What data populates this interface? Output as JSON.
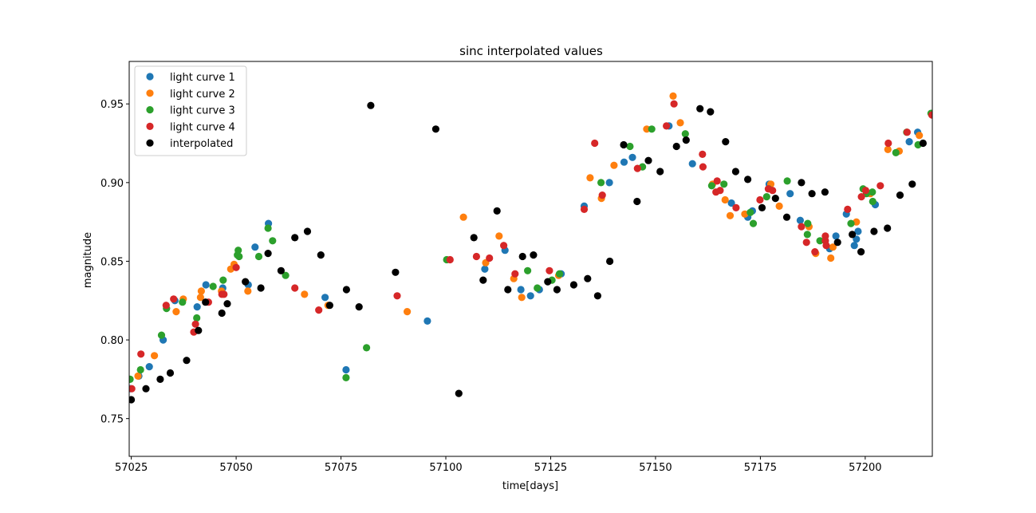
{
  "chart_data": {
    "type": "scatter",
    "title": "sinc interpolated values",
    "xlabel": "time[days]",
    "ylabel": "magnitude",
    "xlim": [
      57024.5,
      57216
    ],
    "ylim": [
      0.726,
      0.977
    ],
    "xticks": [
      57025,
      57050,
      57075,
      57100,
      57125,
      57150,
      57175,
      57200
    ],
    "yticks": [
      0.75,
      0.8,
      0.85,
      0.9,
      0.95
    ],
    "legend_position": "top-left",
    "grid": false,
    "series": [
      {
        "name": "light curve 1",
        "color": "#1f77b4",
        "points": [
          [
            57024.8,
            0.769
          ],
          [
            57026.8,
            0.777
          ],
          [
            57029.3,
            0.783
          ],
          [
            57032.6,
            0.8
          ],
          [
            57035.4,
            0.825
          ],
          [
            57040.7,
            0.821
          ],
          [
            57042.8,
            0.835
          ],
          [
            57046.8,
            0.833
          ],
          [
            57052.9,
            0.835
          ],
          [
            57054.5,
            0.859
          ],
          [
            57057.7,
            0.874
          ],
          [
            57071.2,
            0.827
          ],
          [
            57076.2,
            0.781
          ],
          [
            57095.6,
            0.812
          ],
          [
            57109.3,
            0.845
          ],
          [
            57114.1,
            0.857
          ],
          [
            57117.9,
            0.832
          ],
          [
            57120.2,
            0.828
          ],
          [
            57122.3,
            0.832
          ],
          [
            57127.5,
            0.842
          ],
          [
            57133.0,
            0.885
          ],
          [
            57139.0,
            0.9
          ],
          [
            57142.5,
            0.913
          ],
          [
            57144.5,
            0.916
          ],
          [
            57153.2,
            0.936
          ],
          [
            57158.8,
            0.912
          ],
          [
            57168.1,
            0.887
          ],
          [
            57172.0,
            0.878
          ],
          [
            57173.1,
            0.882
          ],
          [
            57177.1,
            0.899
          ],
          [
            57182.1,
            0.893
          ],
          [
            57184.5,
            0.876
          ],
          [
            57191.5,
            0.858
          ],
          [
            57193.0,
            0.866
          ],
          [
            57195.5,
            0.88
          ],
          [
            57197.4,
            0.86
          ],
          [
            57197.9,
            0.864
          ],
          [
            57198.3,
            0.869
          ],
          [
            57202.4,
            0.886
          ],
          [
            57210.5,
            0.926
          ],
          [
            57212.5,
            0.932
          ]
        ]
      },
      {
        "name": "light curve 2",
        "color": "#ff7f0e",
        "points": [
          [
            57026.6,
            0.777
          ],
          [
            57030.5,
            0.79
          ],
          [
            57035.7,
            0.818
          ],
          [
            57037.4,
            0.826
          ],
          [
            57041.5,
            0.827
          ],
          [
            57041.7,
            0.831
          ],
          [
            57046.5,
            0.831
          ],
          [
            57048.7,
            0.845
          ],
          [
            57049.5,
            0.848
          ],
          [
            57052.8,
            0.831
          ],
          [
            57066.3,
            0.829
          ],
          [
            57071.9,
            0.822
          ],
          [
            57090.8,
            0.818
          ],
          [
            57104.2,
            0.878
          ],
          [
            57109.5,
            0.849
          ],
          [
            57112.7,
            0.866
          ],
          [
            57116.2,
            0.839
          ],
          [
            57118.1,
            0.827
          ],
          [
            57126.9,
            0.841
          ],
          [
            57134.4,
            0.903
          ],
          [
            57137.1,
            0.89
          ],
          [
            57140.1,
            0.911
          ],
          [
            57147.9,
            0.934
          ],
          [
            57154.2,
            0.955
          ],
          [
            57155.9,
            0.938
          ],
          [
            57163.6,
            0.899
          ],
          [
            57166.6,
            0.889
          ],
          [
            57167.8,
            0.879
          ],
          [
            57171.3,
            0.88
          ],
          [
            57177.5,
            0.899
          ],
          [
            57179.5,
            0.885
          ],
          [
            57186.6,
            0.872
          ],
          [
            57188.2,
            0.855
          ],
          [
            57191.8,
            0.852
          ],
          [
            57192.3,
            0.859
          ],
          [
            57197.9,
            0.875
          ],
          [
            57201.2,
            0.893
          ],
          [
            57205.4,
            0.921
          ],
          [
            57208.1,
            0.92
          ],
          [
            57212.9,
            0.93
          ]
        ]
      },
      {
        "name": "light curve 3",
        "color": "#2ca02c",
        "points": [
          [
            57024.7,
            0.775
          ],
          [
            57027.2,
            0.781
          ],
          [
            57032.2,
            0.803
          ],
          [
            57033.4,
            0.82
          ],
          [
            57037.2,
            0.824
          ],
          [
            57040.6,
            0.814
          ],
          [
            57044.5,
            0.834
          ],
          [
            57046.9,
            0.838
          ],
          [
            57050.3,
            0.854
          ],
          [
            57050.5,
            0.857
          ],
          [
            57050.7,
            0.853
          ],
          [
            57055.4,
            0.853
          ],
          [
            57057.6,
            0.871
          ],
          [
            57058.7,
            0.863
          ],
          [
            57061.8,
            0.841
          ],
          [
            57076.2,
            0.776
          ],
          [
            57081.1,
            0.795
          ],
          [
            57100.2,
            0.851
          ],
          [
            57119.5,
            0.844
          ],
          [
            57121.8,
            0.833
          ],
          [
            57125.3,
            0.838
          ],
          [
            57127.1,
            0.842
          ],
          [
            57137.0,
            0.9
          ],
          [
            57143.9,
            0.923
          ],
          [
            57146.9,
            0.91
          ],
          [
            57149.1,
            0.934
          ],
          [
            57157.1,
            0.931
          ],
          [
            57163.4,
            0.898
          ],
          [
            57166.3,
            0.899
          ],
          [
            57172.6,
            0.881
          ],
          [
            57173.3,
            0.874
          ],
          [
            57176.5,
            0.891
          ],
          [
            57177.0,
            0.896
          ],
          [
            57181.4,
            0.901
          ],
          [
            57186.2,
            0.867
          ],
          [
            57186.3,
            0.874
          ],
          [
            57189.2,
            0.863
          ],
          [
            57196.6,
            0.874
          ],
          [
            57199.5,
            0.896
          ],
          [
            57200.3,
            0.893
          ],
          [
            57201.7,
            0.894
          ],
          [
            57201.8,
            0.888
          ],
          [
            57207.3,
            0.919
          ],
          [
            57209.9,
            0.932
          ],
          [
            57212.6,
            0.924
          ],
          [
            57215.7,
            0.944
          ]
        ]
      },
      {
        "name": "light curve 4",
        "color": "#d62728",
        "points": [
          [
            57025.1,
            0.769
          ],
          [
            57027.3,
            0.791
          ],
          [
            57033.3,
            0.822
          ],
          [
            57035.1,
            0.826
          ],
          [
            57039.9,
            0.805
          ],
          [
            57040.3,
            0.81
          ],
          [
            57043.4,
            0.824
          ],
          [
            57046.6,
            0.829
          ],
          [
            57047.1,
            0.829
          ],
          [
            57050.0,
            0.846
          ],
          [
            57064.0,
            0.833
          ],
          [
            57069.7,
            0.819
          ],
          [
            57088.4,
            0.828
          ],
          [
            57101.0,
            0.851
          ],
          [
            57107.3,
            0.853
          ],
          [
            57110.4,
            0.852
          ],
          [
            57113.8,
            0.86
          ],
          [
            57116.5,
            0.842
          ],
          [
            57124.7,
            0.844
          ],
          [
            57133.0,
            0.883
          ],
          [
            57135.5,
            0.925
          ],
          [
            57137.3,
            0.892
          ],
          [
            57145.7,
            0.909
          ],
          [
            57152.6,
            0.936
          ],
          [
            57154.4,
            0.95
          ],
          [
            57161.2,
            0.918
          ],
          [
            57161.3,
            0.91
          ],
          [
            57164.4,
            0.894
          ],
          [
            57164.7,
            0.901
          ],
          [
            57165.4,
            0.895
          ],
          [
            57169.2,
            0.884
          ],
          [
            57174.9,
            0.889
          ],
          [
            57176.9,
            0.896
          ],
          [
            57177.9,
            0.895
          ],
          [
            57184.8,
            0.872
          ],
          [
            57186.0,
            0.862
          ],
          [
            57188.0,
            0.856
          ],
          [
            57190.5,
            0.866
          ],
          [
            57190.5,
            0.863
          ],
          [
            57190.7,
            0.86
          ],
          [
            57195.8,
            0.883
          ],
          [
            57199.1,
            0.891
          ],
          [
            57200.1,
            0.895
          ],
          [
            57203.6,
            0.898
          ],
          [
            57205.5,
            0.925
          ],
          [
            57210.0,
            0.932
          ],
          [
            57215.9,
            0.943
          ]
        ]
      },
      {
        "name": "interpolated",
        "color": "#000000",
        "points": [
          [
            57025.0,
            0.762
          ],
          [
            57028.5,
            0.769
          ],
          [
            57031.9,
            0.775
          ],
          [
            57034.3,
            0.779
          ],
          [
            57038.2,
            0.787
          ],
          [
            57041.0,
            0.806
          ],
          [
            57042.7,
            0.824
          ],
          [
            57046.6,
            0.817
          ],
          [
            57047.9,
            0.823
          ],
          [
            57052.2,
            0.837
          ],
          [
            57055.9,
            0.833
          ],
          [
            57057.6,
            0.855
          ],
          [
            57060.7,
            0.844
          ],
          [
            57064.0,
            0.865
          ],
          [
            57067.0,
            0.869
          ],
          [
            57070.2,
            0.854
          ],
          [
            57072.3,
            0.822
          ],
          [
            57076.3,
            0.832
          ],
          [
            57079.3,
            0.821
          ],
          [
            57082.1,
            0.949
          ],
          [
            57088.0,
            0.843
          ],
          [
            57097.6,
            0.934
          ],
          [
            57103.1,
            0.766
          ],
          [
            57106.7,
            0.865
          ],
          [
            57108.9,
            0.838
          ],
          [
            57112.2,
            0.882
          ],
          [
            57114.8,
            0.832
          ],
          [
            57118.3,
            0.853
          ],
          [
            57120.9,
            0.854
          ],
          [
            57124.3,
            0.837
          ],
          [
            57126.5,
            0.832
          ],
          [
            57130.5,
            0.835
          ],
          [
            57133.8,
            0.839
          ],
          [
            57136.2,
            0.828
          ],
          [
            57139.1,
            0.85
          ],
          [
            57142.4,
            0.924
          ],
          [
            57145.6,
            0.888
          ],
          [
            57148.3,
            0.914
          ],
          [
            57151.1,
            0.907
          ],
          [
            57155.0,
            0.923
          ],
          [
            57157.3,
            0.927
          ],
          [
            57160.6,
            0.947
          ],
          [
            57163.1,
            0.945
          ],
          [
            57166.7,
            0.926
          ],
          [
            57169.1,
            0.907
          ],
          [
            57172.0,
            0.902
          ],
          [
            57175.4,
            0.884
          ],
          [
            57178.6,
            0.89
          ],
          [
            57181.3,
            0.878
          ],
          [
            57184.8,
            0.9
          ],
          [
            57187.3,
            0.893
          ],
          [
            57190.4,
            0.894
          ],
          [
            57193.4,
            0.862
          ],
          [
            57196.9,
            0.867
          ],
          [
            57199.0,
            0.856
          ],
          [
            57202.1,
            0.869
          ],
          [
            57205.3,
            0.871
          ],
          [
            57208.3,
            0.892
          ],
          [
            57211.2,
            0.899
          ],
          [
            57213.8,
            0.925
          ]
        ]
      }
    ]
  }
}
